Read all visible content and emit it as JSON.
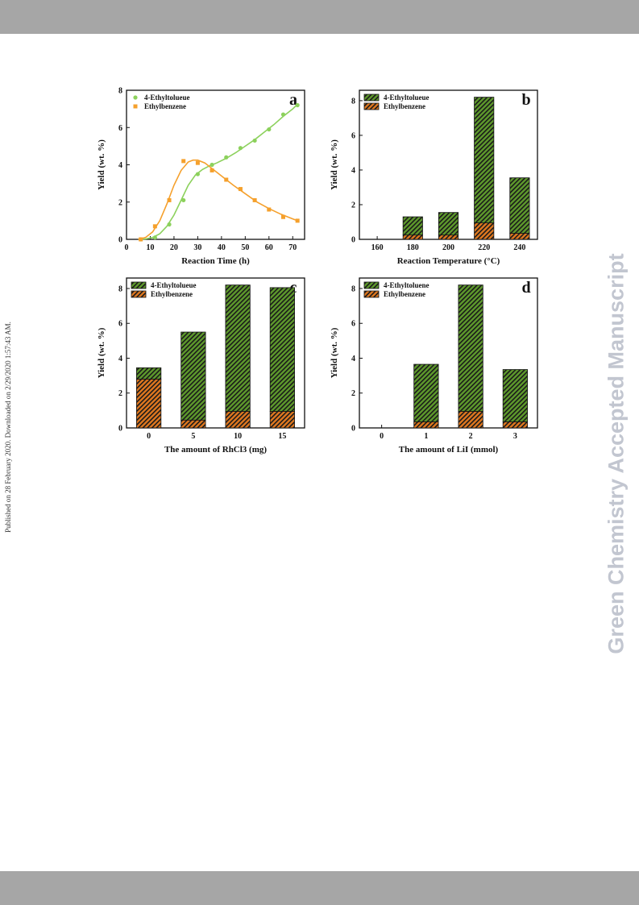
{
  "page": {
    "side_left_text": "Published on 28 February 2020. Downloaded on 2/29/2020 1:57:43 AM.",
    "side_right_text": "Green Chemistry Accepted Manuscript"
  },
  "colors": {
    "green": "#8cd15c",
    "green_fill": "#5e9a2c",
    "orange": "#f5a02c",
    "orange_fill": "#e0781f",
    "hatch": "#1a1a1a"
  },
  "chart_data": [
    {
      "id": "a",
      "type": "line",
      "panel_label": "a",
      "xlabel": "Reaction Time (h)",
      "ylabel": "Yield (wt. %)",
      "xlim": [
        0,
        75
      ],
      "ylim": [
        0,
        8
      ],
      "xticks": [
        0,
        10,
        20,
        30,
        40,
        50,
        60,
        70
      ],
      "yticks": [
        0,
        2,
        4,
        6,
        8
      ],
      "legend_position": "top-left",
      "series": [
        {
          "name": "4-Ethyltolueue",
          "color": "#8cd15c",
          "marker": "circle",
          "x": [
            6,
            12,
            18,
            24,
            30,
            36,
            42,
            48,
            54,
            60,
            66,
            72
          ],
          "y": [
            0.0,
            0.1,
            0.8,
            2.1,
            3.5,
            4.0,
            4.4,
            4.9,
            5.3,
            5.9,
            6.7,
            7.2
          ],
          "curve_x": [
            5,
            8,
            11,
            14,
            17,
            20,
            23,
            26,
            29,
            32,
            35,
            38,
            42,
            46,
            50,
            54,
            58,
            62,
            66,
            70,
            72
          ],
          "curve_y": [
            0.0,
            0.02,
            0.1,
            0.3,
            0.7,
            1.3,
            2.1,
            2.9,
            3.45,
            3.75,
            3.95,
            4.1,
            4.35,
            4.65,
            5.0,
            5.35,
            5.75,
            6.15,
            6.6,
            7.0,
            7.25
          ]
        },
        {
          "name": "Ethylbenzene",
          "color": "#f5a02c",
          "marker": "square",
          "x": [
            6,
            12,
            18,
            24,
            30,
            36,
            42,
            48,
            54,
            60,
            66,
            72
          ],
          "y": [
            0.0,
            0.7,
            2.1,
            4.2,
            4.1,
            3.7,
            3.2,
            2.7,
            2.1,
            1.6,
            1.2,
            1.0
          ],
          "curve_x": [
            5,
            8,
            11,
            14,
            17,
            20,
            23,
            26,
            28,
            30,
            33,
            36,
            40,
            45,
            50,
            55,
            60,
            65,
            70,
            72
          ],
          "curve_y": [
            0.0,
            0.1,
            0.4,
            1.0,
            1.9,
            2.9,
            3.7,
            4.15,
            4.25,
            4.25,
            4.1,
            3.8,
            3.4,
            2.9,
            2.45,
            2.0,
            1.65,
            1.35,
            1.1,
            1.0
          ]
        }
      ]
    },
    {
      "id": "b",
      "type": "bar",
      "panel_label": "b",
      "stacked": true,
      "xlabel": "Reaction Temperature (°C)",
      "ylabel": "Yield (wt. %)",
      "ylim": [
        0,
        8.6
      ],
      "yticks": [
        0,
        2,
        4,
        6,
        8
      ],
      "categories": [
        "160",
        "180",
        "200",
        "220",
        "240"
      ],
      "legend_position": "top-left",
      "series": [
        {
          "name": "Ethylbenzene",
          "color": "#e0781f",
          "values": [
            0,
            0.25,
            0.25,
            0.95,
            0.35
          ]
        },
        {
          "name": "4-Ethyltolueue",
          "color": "#5e9a2c",
          "values": [
            0,
            1.05,
            1.3,
            7.25,
            3.2
          ]
        }
      ]
    },
    {
      "id": "c",
      "type": "bar",
      "panel_label": "c",
      "stacked": true,
      "xlabel": "The amount of RhCl3 (mg)",
      "ylabel": "Yield (wt. %)",
      "ylim": [
        0,
        8.6
      ],
      "yticks": [
        0,
        2,
        4,
        6,
        8
      ],
      "categories": [
        "0",
        "5",
        "10",
        "15"
      ],
      "legend_position": "top-left",
      "series": [
        {
          "name": "Ethylbenzene",
          "color": "#e0781f",
          "values": [
            2.8,
            0.45,
            0.95,
            0.95
          ]
        },
        {
          "name": "4-Ethyltolueue",
          "color": "#5e9a2c",
          "values": [
            0.65,
            5.05,
            7.25,
            7.1
          ]
        }
      ]
    },
    {
      "id": "d",
      "type": "bar",
      "panel_label": "d",
      "stacked": true,
      "xlabel": "The amount of LiI (mmol)",
      "ylabel": "Yield (wt. %)",
      "ylim": [
        0,
        8.6
      ],
      "yticks": [
        0,
        2,
        4,
        6,
        8
      ],
      "categories": [
        "0",
        "1",
        "2",
        "3"
      ],
      "legend_position": "top-left",
      "series": [
        {
          "name": "Ethylbenzene",
          "color": "#e0781f",
          "values": [
            0,
            0.35,
            0.95,
            0.35
          ]
        },
        {
          "name": "4-Ethyltoluene",
          "color": "#5e9a2c",
          "values": [
            0,
            3.3,
            7.25,
            3.0
          ]
        }
      ]
    }
  ]
}
